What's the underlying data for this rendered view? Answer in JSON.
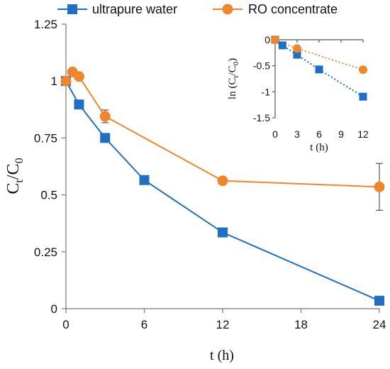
{
  "chart_data": {
    "type": "line",
    "xlabel": "t (h)",
    "ylabel_main": "C",
    "ylabel_sub_t": "t",
    "ylabel_slash": "/C",
    "ylabel_sub_0": "0",
    "xlim": [
      0,
      24
    ],
    "ylim": [
      0,
      1.25
    ],
    "xticks": [
      "0",
      "6",
      "12",
      "18",
      "24"
    ],
    "yticks": [
      "0",
      "0.25",
      "0.5",
      "0.75",
      "1",
      "1.25"
    ],
    "legend_placement": "top",
    "series": [
      {
        "name": "ultrapure water",
        "color": "#1f6fc5",
        "marker": "square",
        "x": [
          0,
          1,
          3,
          6,
          12,
          24
        ],
        "y": [
          1.0,
          0.897,
          0.75,
          0.565,
          0.335,
          0.035
        ]
      },
      {
        "name": "RO concentrate",
        "color": "#f0862b",
        "marker": "circle",
        "x": [
          0,
          0.5,
          1,
          3,
          12,
          24
        ],
        "y": [
          1.0,
          1.04,
          1.02,
          0.845,
          0.562,
          0.535
        ],
        "err": [
          0.012,
          0.01,
          0.01,
          0.028,
          0.01,
          0.103
        ]
      }
    ],
    "inset": {
      "xlabel": "t (h)",
      "ylabel_prefix": "ln (C",
      "ylabel_sub_t": "t",
      "ylabel_mid": "/C",
      "ylabel_sub_0": "0",
      "ylabel_suffix": ")",
      "xlim": [
        0,
        12
      ],
      "ylim": [
        -1.5,
        0
      ],
      "xticks": [
        "0",
        "3",
        "6",
        "9",
        "12"
      ],
      "yticks": [
        "0",
        "-0.5",
        "-1",
        "-1.5"
      ],
      "series": [
        {
          "name": "ultrapure water",
          "color": "#1f6fc5",
          "marker": "square",
          "x": [
            0,
            1,
            3,
            6,
            12
          ],
          "y": [
            0,
            -0.108,
            -0.288,
            -0.571,
            -1.094
          ]
        },
        {
          "name": "RO concentrate",
          "color": "#f0862b",
          "marker": "circle",
          "x": [
            0,
            3,
            12
          ],
          "y": [
            0,
            -0.168,
            -0.576
          ]
        }
      ]
    }
  }
}
